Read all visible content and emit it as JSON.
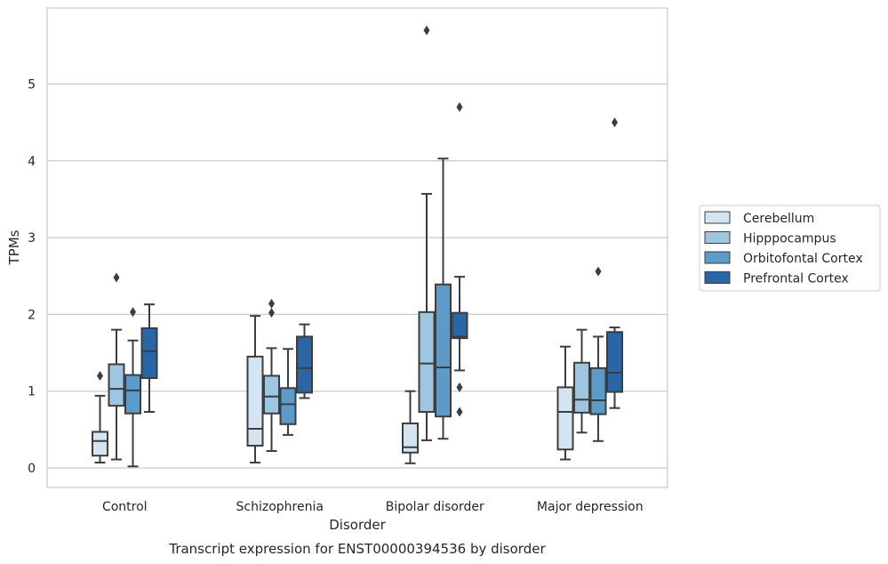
{
  "chart_data": {
    "type": "box",
    "title": "Transcript expression for ENST00000394536 by disorder",
    "xlabel": "Disorder",
    "ylabel": "TPMs",
    "ylim": [
      -0.25,
      6.0
    ],
    "yticks": [
      0,
      1,
      2,
      3,
      4,
      5
    ],
    "grid": "horizontal",
    "legend_position": "right",
    "categories": [
      "Control",
      "Schizophrenia",
      "Bipolar disorder",
      "Major depression"
    ],
    "series": [
      {
        "name": "Cerebellum",
        "color": "#d3e4f3",
        "boxes": [
          {
            "whislo": 0.07,
            "q1": 0.16,
            "med": 0.35,
            "q3": 0.47,
            "whishi": 0.94,
            "fliers": [
              1.2
            ]
          },
          {
            "whislo": 0.07,
            "q1": 0.29,
            "med": 0.51,
            "q3": 1.45,
            "whishi": 1.98,
            "fliers": []
          },
          {
            "whislo": 0.06,
            "q1": 0.2,
            "med": 0.27,
            "q3": 0.58,
            "whishi": 1.0,
            "fliers": []
          },
          {
            "whislo": 0.11,
            "q1": 0.24,
            "med": 0.73,
            "q3": 1.05,
            "whishi": 1.58,
            "fliers": []
          }
        ]
      },
      {
        "name": "Hipppocampus",
        "color": "#9dc7e0",
        "boxes": [
          {
            "whislo": 0.11,
            "q1": 0.81,
            "med": 1.03,
            "q3": 1.35,
            "whishi": 1.8,
            "fliers": [
              2.48
            ]
          },
          {
            "whislo": 0.22,
            "q1": 0.71,
            "med": 0.93,
            "q3": 1.2,
            "whishi": 1.56,
            "fliers": [
              2.02,
              2.14
            ]
          },
          {
            "whislo": 0.36,
            "q1": 0.73,
            "med": 1.36,
            "q3": 2.03,
            "whishi": 3.57,
            "fliers": [
              5.7
            ]
          },
          {
            "whislo": 0.46,
            "q1": 0.72,
            "med": 0.89,
            "q3": 1.37,
            "whishi": 1.8,
            "fliers": []
          }
        ]
      },
      {
        "name": "Orbitofontal Cortex",
        "color": "#5a9bc9",
        "boxes": [
          {
            "whislo": 0.02,
            "q1": 0.71,
            "med": 1.01,
            "q3": 1.21,
            "whishi": 1.66,
            "fliers": [
              2.03
            ]
          },
          {
            "whislo": 0.43,
            "q1": 0.57,
            "med": 0.83,
            "q3": 1.04,
            "whishi": 1.55,
            "fliers": []
          },
          {
            "whislo": 0.38,
            "q1": 0.67,
            "med": 1.31,
            "q3": 2.39,
            "whishi": 4.03,
            "fliers": []
          },
          {
            "whislo": 0.35,
            "q1": 0.7,
            "med": 0.88,
            "q3": 1.3,
            "whishi": 1.71,
            "fliers": [
              2.56
            ]
          }
        ]
      },
      {
        "name": "Prefrontal Cortex",
        "color": "#2866a8",
        "boxes": [
          {
            "whislo": 0.73,
            "q1": 1.17,
            "med": 1.52,
            "q3": 1.82,
            "whishi": 2.13,
            "fliers": []
          },
          {
            "whislo": 0.91,
            "q1": 0.98,
            "med": 1.3,
            "q3": 1.71,
            "whishi": 1.87,
            "fliers": []
          },
          {
            "whislo": 1.27,
            "q1": 1.69,
            "med": 1.71,
            "q3": 2.02,
            "whishi": 2.49,
            "fliers": [
              0.73,
              1.05,
              4.7
            ]
          },
          {
            "whislo": 0.78,
            "q1": 0.99,
            "med": 1.24,
            "q3": 1.77,
            "whishi": 1.83,
            "fliers": [
              4.5
            ]
          }
        ]
      }
    ]
  }
}
